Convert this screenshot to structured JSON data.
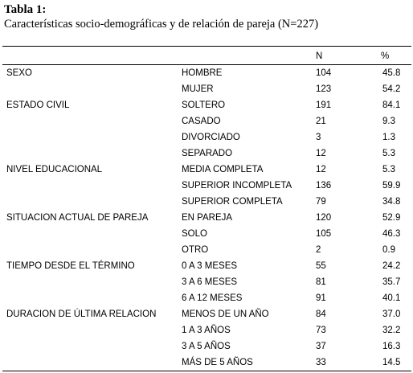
{
  "header": {
    "title": "Tabla 1:",
    "subtitle": "Características socio-demográficas  y de relación  de pareja  (N=227)"
  },
  "table": {
    "columns": [
      "N",
      "%"
    ],
    "groups": [
      {
        "label": "SEXO",
        "rows": [
          [
            "HOMBRE",
            "104",
            "45.8"
          ],
          [
            "MUJER",
            "123",
            "54.2"
          ]
        ]
      },
      {
        "label": "ESTADO CIVIL",
        "rows": [
          [
            "SOLTERO",
            "191",
            "84.1"
          ],
          [
            "CASADO",
            "21",
            "9.3"
          ],
          [
            "DIVORCIADO",
            "3",
            "1.3"
          ],
          [
            "SEPARADO",
            "12",
            "5.3"
          ]
        ]
      },
      {
        "label": "NIVEL EDUCACIONAL",
        "rows": [
          [
            "MEDIA COMPLETA",
            "12",
            "5.3"
          ],
          [
            "SUPERIOR INCOMPLETA",
            "136",
            "59.9"
          ],
          [
            "SUPERIOR COMPLETA",
            "79",
            "34.8"
          ]
        ]
      },
      {
        "label": "SITUACION ACTUAL DE PAREJA",
        "rows": [
          [
            "EN PAREJA",
            "120",
            "52.9"
          ],
          [
            "SOLO",
            "105",
            "46.3"
          ],
          [
            "OTRO",
            "2",
            "0.9"
          ]
        ]
      },
      {
        "label": "TIEMPO DESDE EL TÉRMINO",
        "rows": [
          [
            "0 A 3 MESES",
            "55",
            "24.2"
          ],
          [
            "3 A 6 MESES",
            "81",
            "35.7"
          ],
          [
            "6 A 12 MESES",
            "91",
            "40.1"
          ]
        ]
      },
      {
        "label": "DURACION DE ÚLTIMA RELACION",
        "rows": [
          [
            "MENOS DE UN AÑO",
            "84",
            "37.0"
          ],
          [
            "1 A 3 AÑOS",
            "73",
            "32.2"
          ],
          [
            "3 A 5 AÑOS",
            "37",
            "16.3"
          ],
          [
            "MÁS DE 5 AÑOS",
            "33",
            "14.5"
          ]
        ]
      }
    ]
  }
}
